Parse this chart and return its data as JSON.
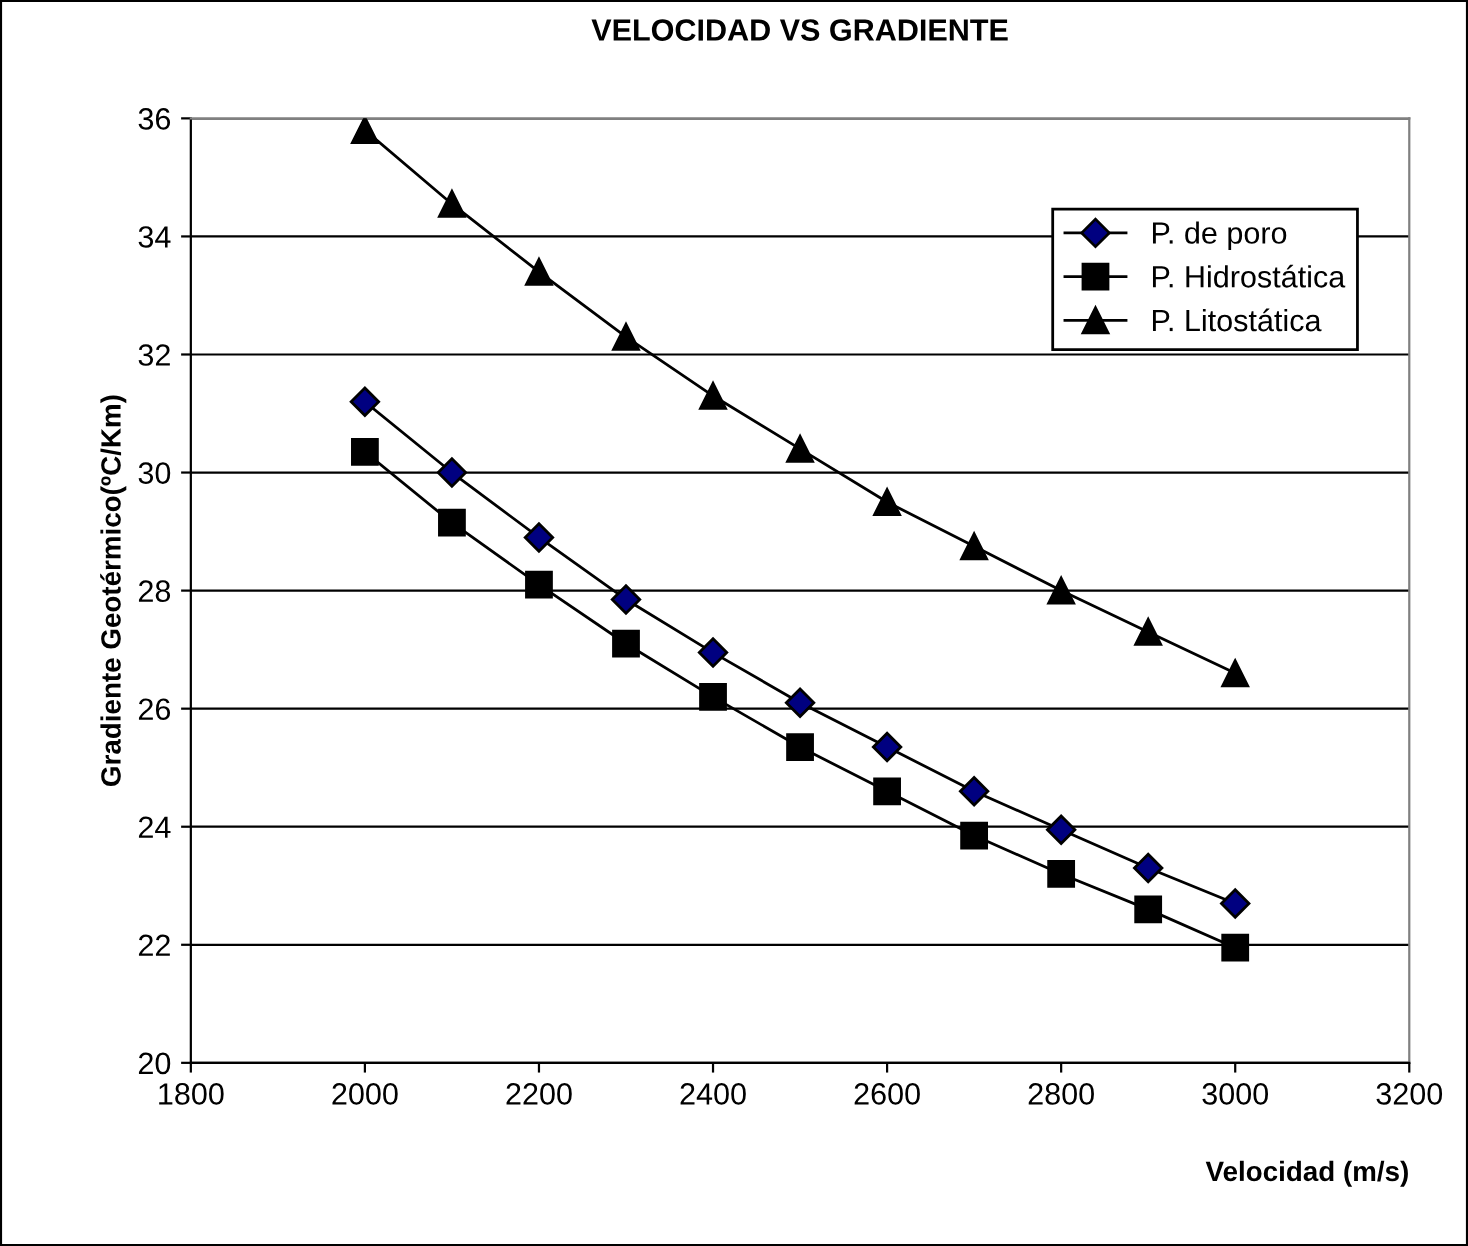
{
  "chart_data": {
    "type": "line",
    "title": "VELOCIDAD VS GRADIENTE",
    "xlabel": "Velocidad (m/s)",
    "ylabel": "Gradiente Geotérmico(ºC/Km)",
    "x": [
      2000,
      2100,
      2200,
      2300,
      2400,
      2500,
      2600,
      2700,
      2800,
      2900,
      3000
    ],
    "series": [
      {
        "name": "P. de poro",
        "color": "#000080",
        "marker": "diamond",
        "values": [
          31.2,
          30.0,
          28.9,
          27.85,
          26.95,
          26.1,
          25.35,
          24.6,
          23.95,
          23.3,
          22.7
        ]
      },
      {
        "name": "P. Hidrostática",
        "color": "#000000",
        "marker": "square",
        "values": [
          30.35,
          29.15,
          28.1,
          27.1,
          26.2,
          25.35,
          24.6,
          23.85,
          23.2,
          22.6,
          21.95
        ]
      },
      {
        "name": "P. Litostática",
        "color": "#000000",
        "marker": "triangle",
        "values": [
          35.8,
          34.55,
          33.4,
          32.3,
          31.3,
          30.4,
          29.5,
          28.75,
          28.0,
          27.3,
          26.6
        ]
      }
    ],
    "xlim": [
      1800,
      3200
    ],
    "xticks": [
      1800,
      2000,
      2200,
      2400,
      2600,
      2800,
      3000,
      3200
    ],
    "ylim": [
      20,
      36
    ],
    "yticks": [
      20,
      22,
      24,
      26,
      28,
      30,
      32,
      34,
      36
    ],
    "grid": "y",
    "legend": "top right",
    "line_style": "solid"
  }
}
